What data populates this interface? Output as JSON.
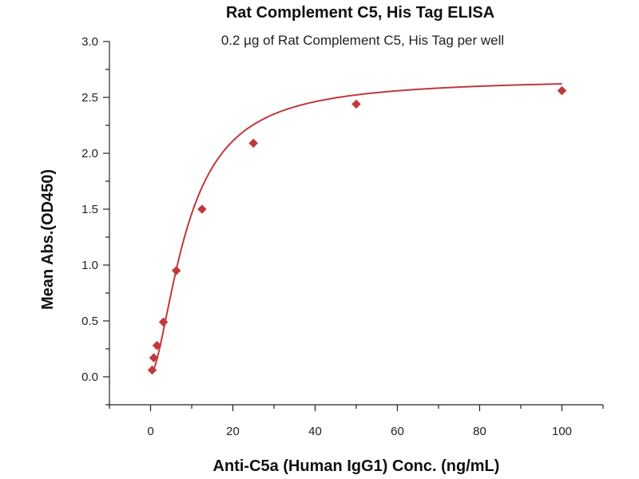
{
  "chart_data": {
    "type": "scatter",
    "title": "Rat Complement C5, His Tag ELISA",
    "subtitle": "0.2 µg of Rat Complement C5, His Tag per well",
    "xlabel": "Anti-C5a (Human IgG1) Conc. (ng/mL)",
    "ylabel": "Mean Abs.(OD450)",
    "xlim": [
      -10,
      110
    ],
    "ylim": [
      -0.25,
      3.0
    ],
    "xticks": [
      0,
      20,
      40,
      60,
      80,
      100
    ],
    "yticks": [
      0.0,
      0.5,
      1.0,
      1.5,
      2.0,
      2.5,
      3.0
    ],
    "x_tick_labels": [
      "0",
      "20",
      "40",
      "60",
      "80",
      "100"
    ],
    "y_tick_labels": [
      "0.0",
      "0.5",
      "1.0",
      "1.5",
      "2.0",
      "2.5",
      "3.0"
    ],
    "grid": false,
    "legend": "none",
    "series": [
      {
        "points": [
          {
            "x": 0.39,
            "y": 0.06
          },
          {
            "x": 0.78,
            "y": 0.17
          },
          {
            "x": 1.56,
            "y": 0.28
          },
          {
            "x": 3.13,
            "y": 0.49
          },
          {
            "x": 6.25,
            "y": 0.95
          },
          {
            "x": 12.5,
            "y": 1.5
          },
          {
            "x": 25,
            "y": 2.09
          },
          {
            "x": 50,
            "y": 2.44
          },
          {
            "x": 100,
            "y": 2.56
          }
        ],
        "color": "#c0393b"
      }
    ],
    "fit_curve": {
      "model": "4PL",
      "bottom": 0.02,
      "top": 2.67,
      "ec50": 9.0,
      "hill": 1.65,
      "color": "#c0393b"
    }
  }
}
